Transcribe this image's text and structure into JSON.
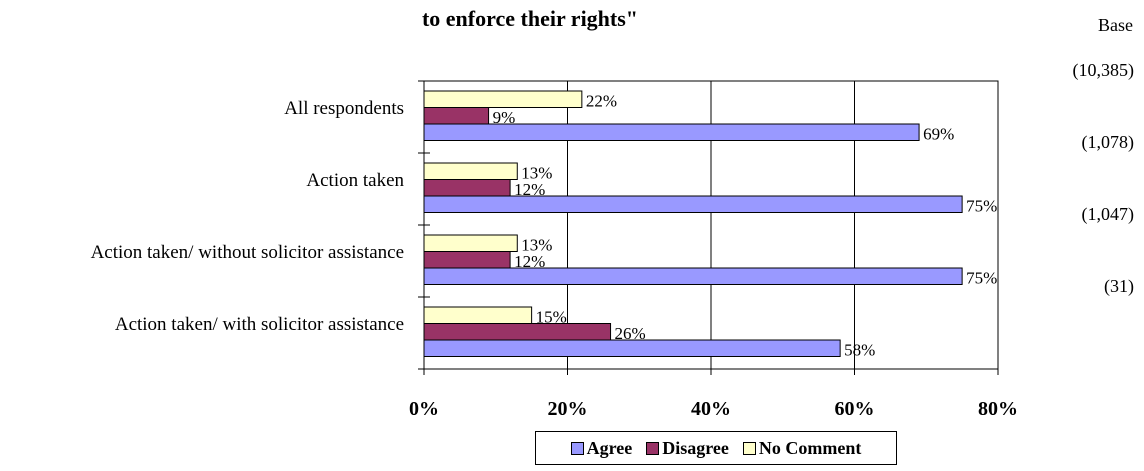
{
  "chart_data": {
    "type": "bar",
    "orientation": "horizontal",
    "title": "to enforce their rights\"",
    "base_header": "Base",
    "categories": [
      "All respondents",
      "Action taken",
      "Action taken/ without solicitor assistance",
      "Action taken/ with solicitor assistance"
    ],
    "bases": [
      "(10,385)",
      "(1,078)",
      "(1,047)",
      "(31)"
    ],
    "series": [
      {
        "name": "Agree",
        "color": "#9999ff",
        "values": [
          69,
          75,
          75,
          58
        ],
        "labels": [
          "69%",
          "75%",
          "75%",
          "58%"
        ]
      },
      {
        "name": "Disagree",
        "color": "#993366",
        "values": [
          9,
          12,
          12,
          26
        ],
        "labels": [
          "9%",
          "12%",
          "12%",
          "26%"
        ]
      },
      {
        "name": "No Comment",
        "color": "#ffffcc",
        "values": [
          22,
          13,
          13,
          15
        ],
        "labels": [
          "22%",
          "13%",
          "13%",
          "15%"
        ]
      }
    ],
    "xlim": [
      0,
      80
    ],
    "xticks": [
      "0%",
      "20%",
      "40%",
      "60%",
      "80%"
    ],
    "grid": true,
    "legend_position": "bottom"
  }
}
